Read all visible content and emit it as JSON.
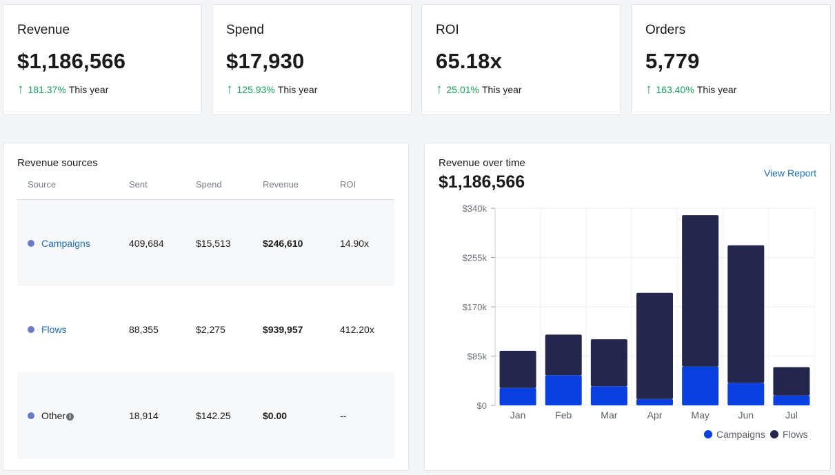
{
  "kpis": [
    {
      "title": "Revenue",
      "value": "$1,186,566",
      "change": "181.37%",
      "period": "This year"
    },
    {
      "title": "Spend",
      "value": "$17,930",
      "change": "125.93%",
      "period": "This year"
    },
    {
      "title": "ROI",
      "value": "65.18x",
      "change": "25.01%",
      "period": "This year"
    },
    {
      "title": "Orders",
      "value": "5,779",
      "change": "163.40%",
      "period": "This year"
    }
  ],
  "sources": {
    "title": "Revenue sources",
    "columns": [
      "Source",
      "Sent",
      "Spend",
      "Revenue",
      "ROI"
    ],
    "rows": [
      {
        "source": "Campaigns",
        "sent": "409,684",
        "spend": "$15,513",
        "revenue": "$246,610",
        "roi": "14.90x"
      },
      {
        "source": "Flows",
        "sent": "88,355",
        "spend": "$2,275",
        "revenue": "$939,957",
        "roi": "412.20x"
      },
      {
        "source": "Other",
        "sent": "18,914",
        "spend": "$142.25",
        "revenue": "$0.00",
        "roi": "--"
      }
    ],
    "info_icon": "info-icon",
    "dot_color": "#6b7bc5"
  },
  "overtime": {
    "title": "Revenue over time",
    "total": "$1,186,566",
    "link": "View Report"
  },
  "icons": {
    "trend": "arrow-up-icon",
    "info": "info-icon"
  },
  "colors": {
    "positive": "#1aa35a",
    "link": "#1f6fb5",
    "campaigns": "#0a3fe0",
    "flows": "#24264c"
  },
  "chart_data": {
    "type": "bar",
    "stacked": true,
    "categories": [
      "Jan",
      "Feb",
      "Mar",
      "Apr",
      "May",
      "Jun",
      "Jul"
    ],
    "series": [
      {
        "name": "Campaigns",
        "color": "#0a3fe0",
        "values": [
          30000,
          52000,
          33000,
          11000,
          67000,
          39000,
          17000
        ]
      },
      {
        "name": "Flows",
        "color": "#24264c",
        "values": [
          64000,
          70000,
          81000,
          183000,
          261000,
          237000,
          49000
        ]
      }
    ],
    "yticks": [
      "$0",
      "$85k",
      "$170k",
      "$255k",
      "$340k"
    ],
    "ylim": [
      0,
      340000
    ],
    "grid": true,
    "legend": "bottom-right"
  }
}
